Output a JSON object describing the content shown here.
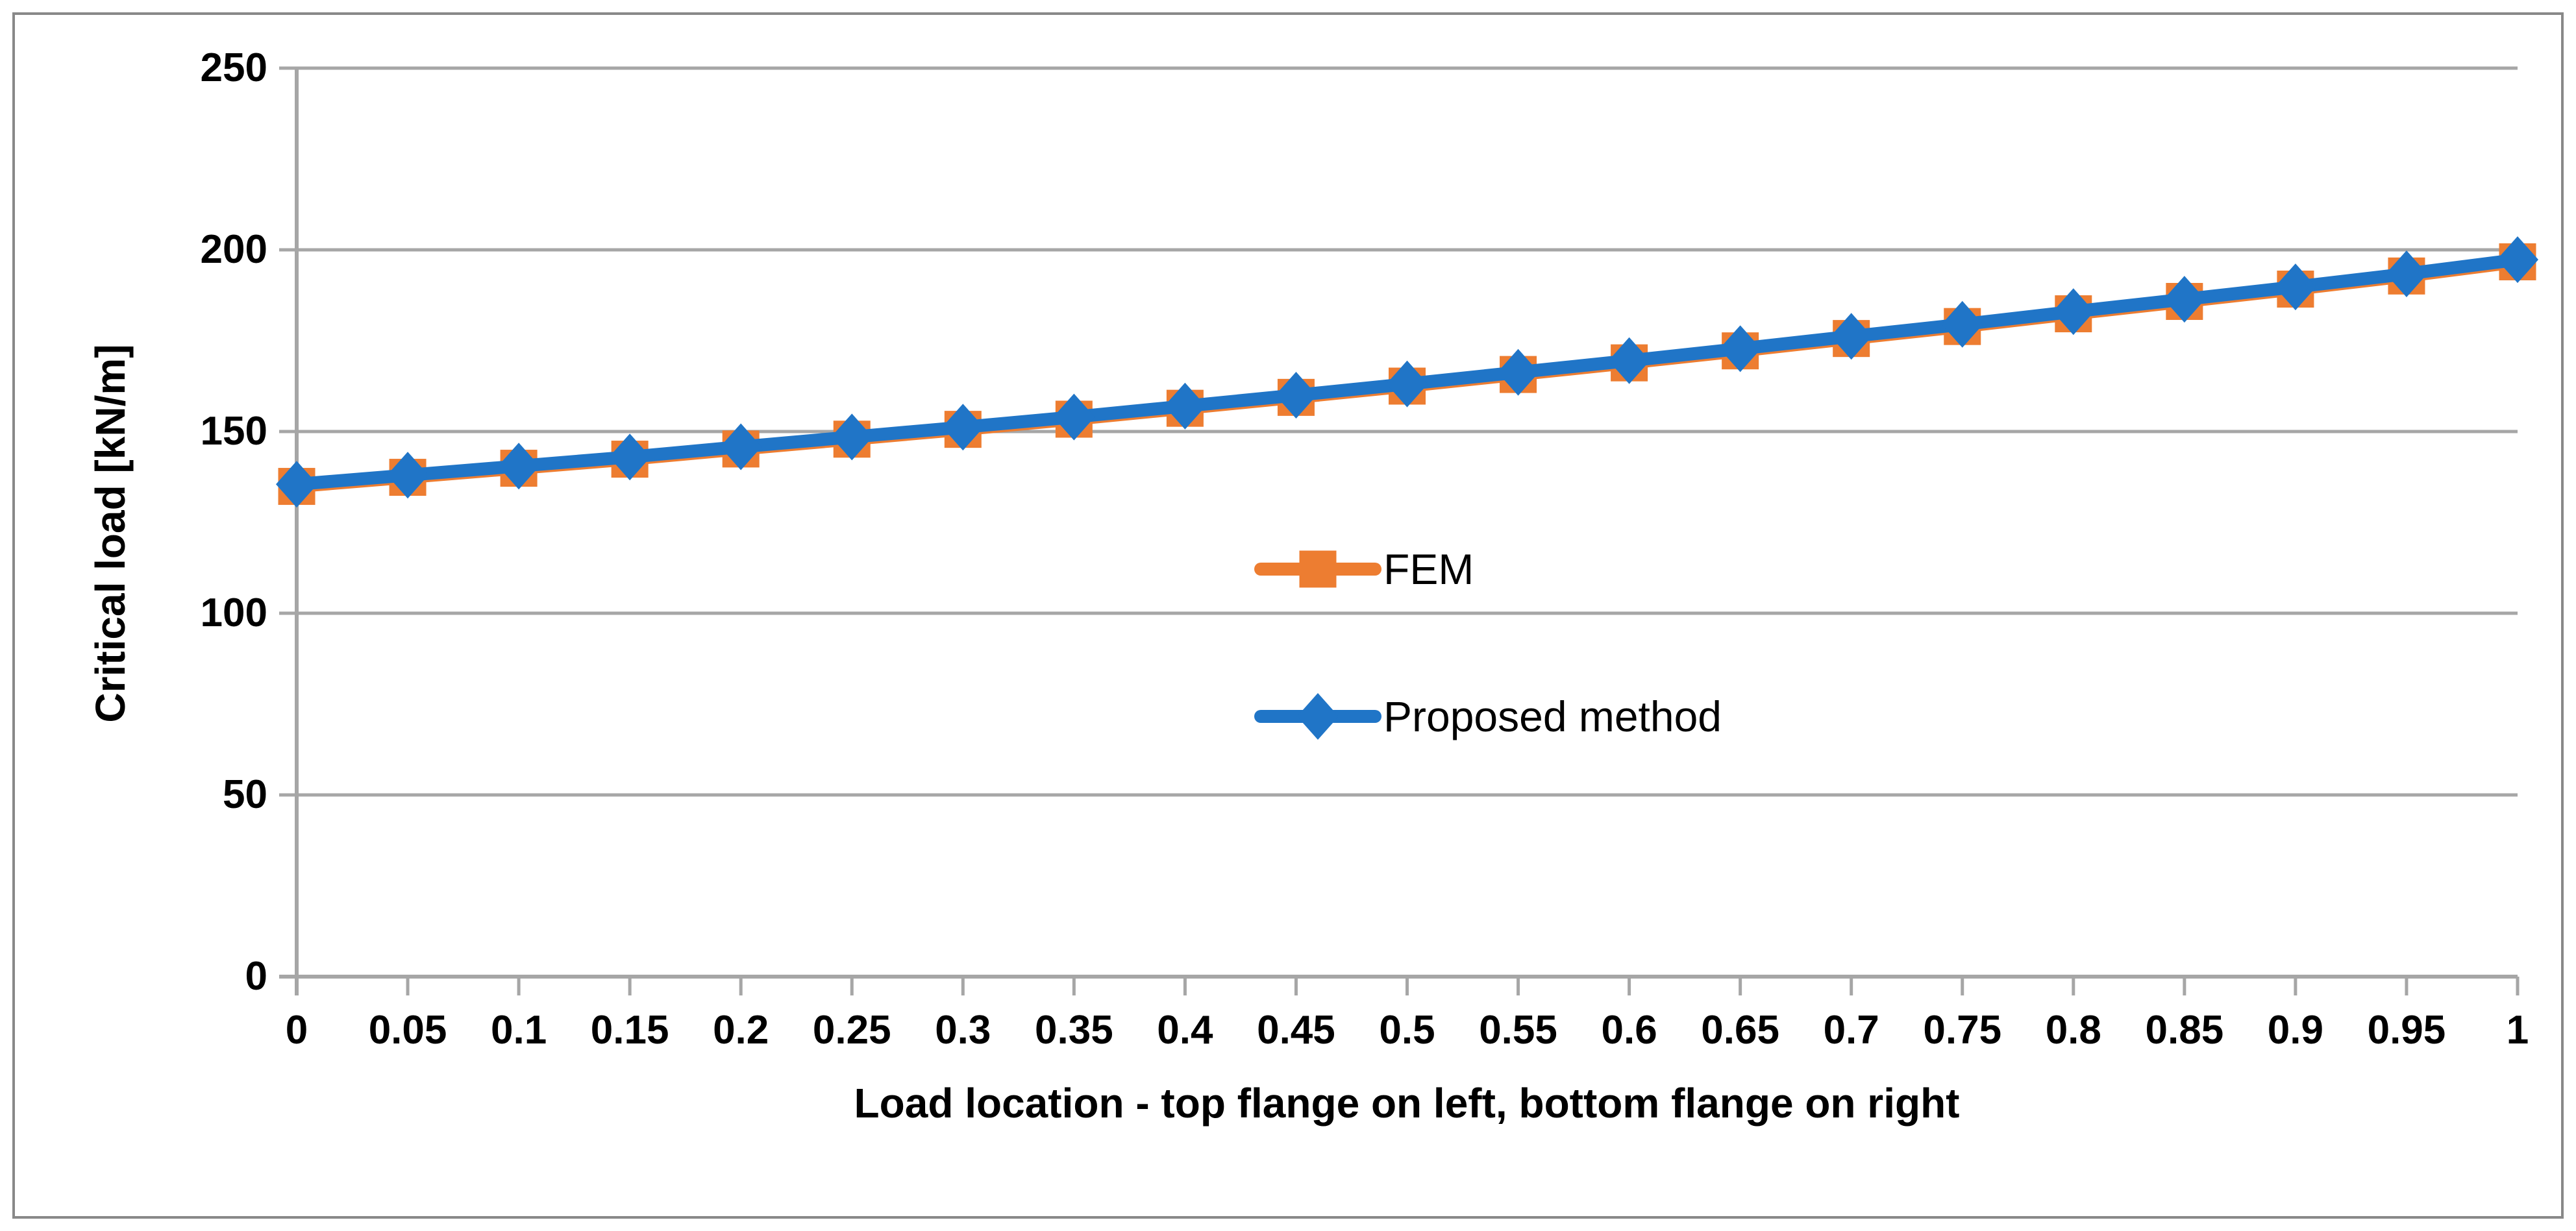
{
  "chart_data": {
    "type": "line",
    "title": "",
    "xlabel": "Load location - top flange on left, bottom flange on right",
    "ylabel": "Critical load [kN/m]",
    "x": [
      0,
      0.05,
      0.1,
      0.15,
      0.2,
      0.25,
      0.3,
      0.35,
      0.4,
      0.45,
      0.5,
      0.55,
      0.6,
      0.65,
      0.7,
      0.75,
      0.8,
      0.85,
      0.9,
      0.95,
      1
    ],
    "x_tick_labels": [
      "0",
      "0.05",
      "0.1",
      "0.15",
      "0.2",
      "0.25",
      "0.3",
      "0.35",
      "0.4",
      "0.45",
      "0.5",
      "0.55",
      "0.6",
      "0.65",
      "0.7",
      "0.75",
      "0.8",
      "0.85",
      "0.9",
      "0.95",
      "1"
    ],
    "y_ticks": [
      0,
      50,
      100,
      150,
      200,
      250
    ],
    "y_tick_labels": [
      "0",
      "50",
      "100",
      "150",
      "200",
      "250"
    ],
    "xlim": [
      0,
      1
    ],
    "ylim": [
      0,
      250
    ],
    "grid": true,
    "legend_position": "center-inside",
    "series": [
      {
        "name": "FEM",
        "marker": "square",
        "color_key": "fem_orange",
        "values": [
          134.9,
          137.4,
          139.9,
          142.4,
          145.2,
          147.9,
          150.6,
          153.4,
          156.4,
          159.4,
          162.5,
          165.7,
          168.9,
          172.2,
          175.6,
          178.9,
          182.4,
          185.8,
          189.2,
          192.8,
          196.7
        ]
      },
      {
        "name": "Proposed method",
        "marker": "diamond",
        "color_key": "proposed_blue",
        "values": [
          135.5,
          138.0,
          140.5,
          143.0,
          145.8,
          148.5,
          151.2,
          154.0,
          157.0,
          160.0,
          163.1,
          166.3,
          169.5,
          172.8,
          176.2,
          179.5,
          183.0,
          186.4,
          189.8,
          193.4,
          197.3
        ]
      }
    ]
  },
  "colors": {
    "fem_orange": "#ED7D31",
    "proposed_blue": "#2075C7",
    "gridline_gray": "#A6A6A6",
    "axis_gray": "#A6A6A6",
    "border_gray": "#898989",
    "text_black": "#000000"
  }
}
